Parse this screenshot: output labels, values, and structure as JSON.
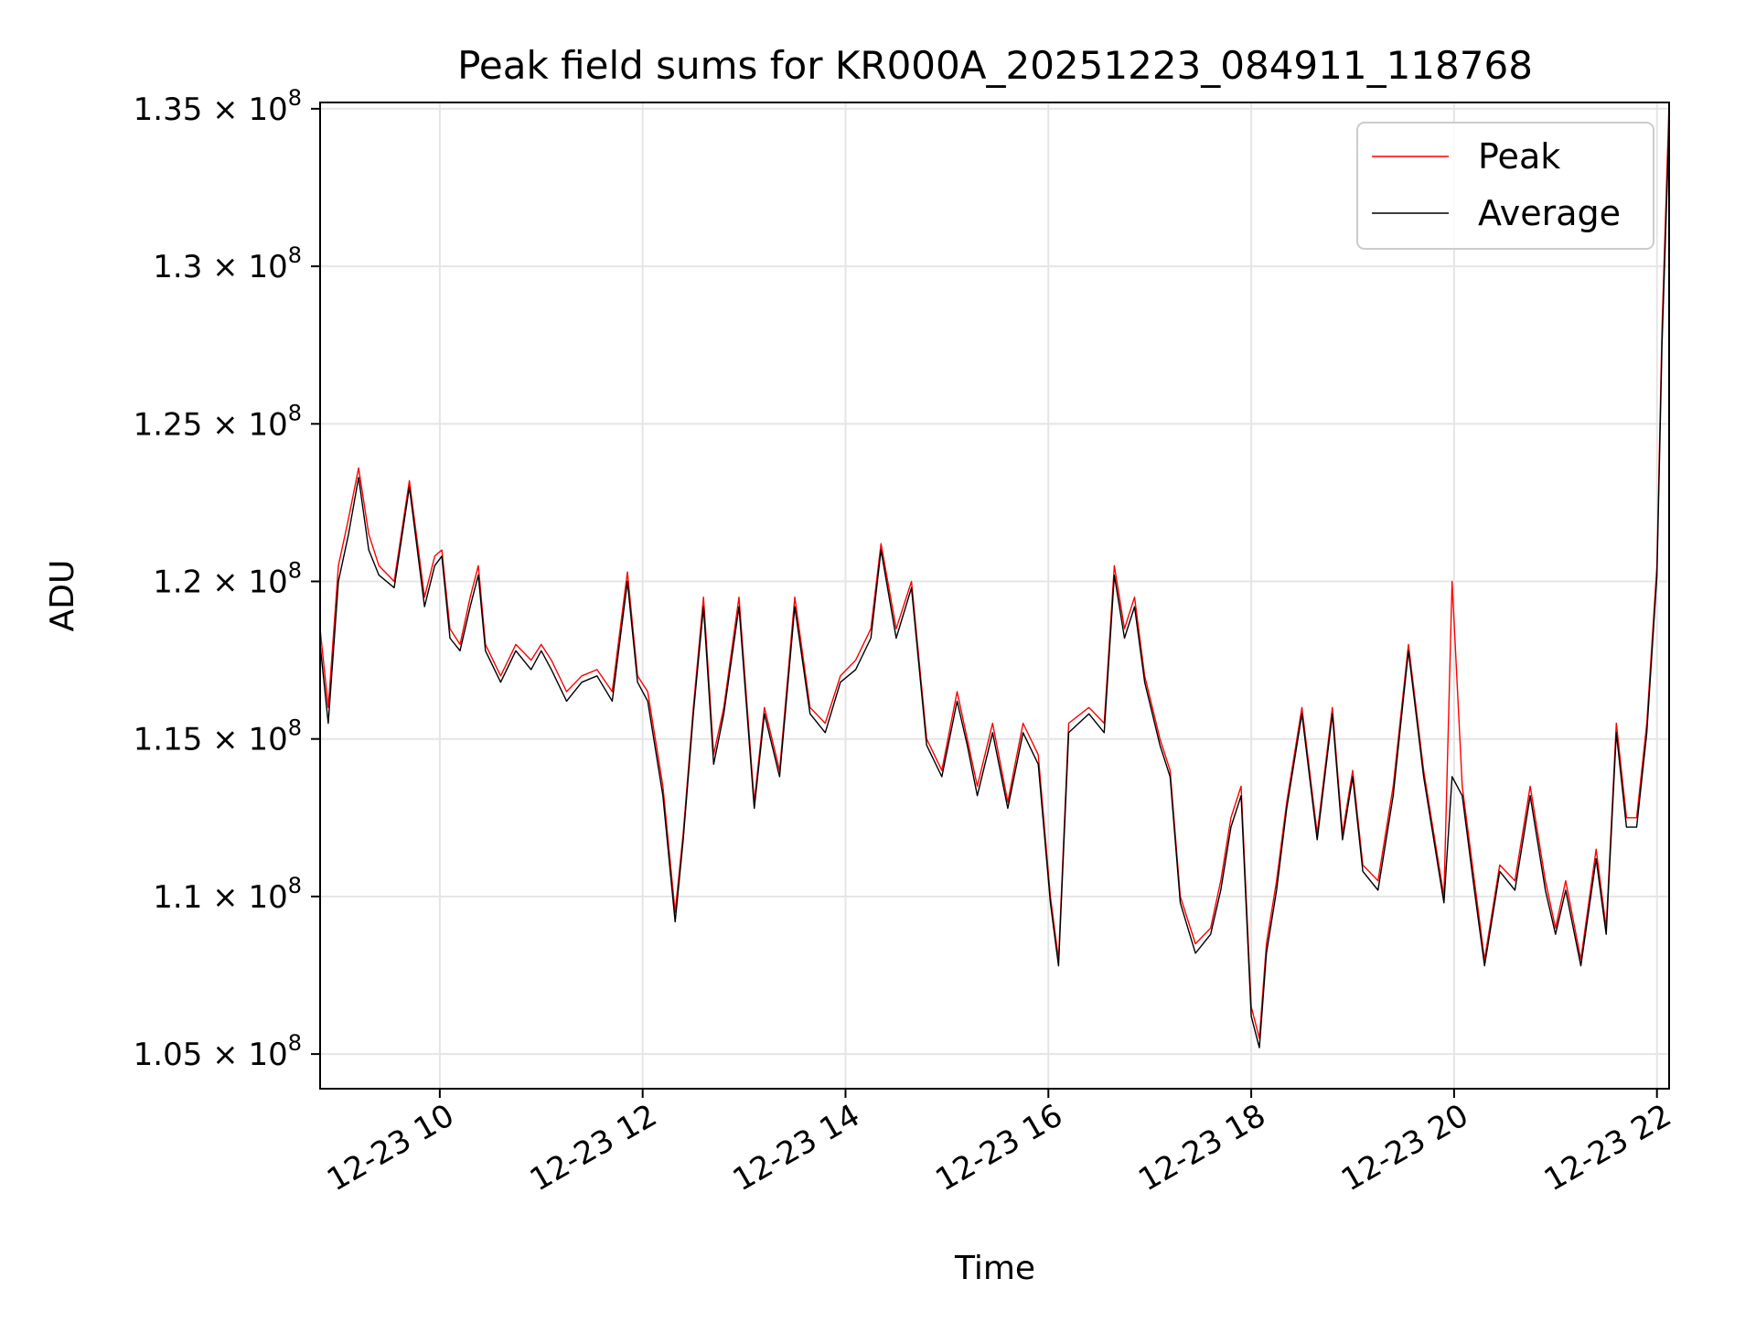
{
  "chart_data": {
    "type": "line",
    "title": "Peak field sums for KR000A_20251223_084911_118768",
    "xlabel": "Time",
    "ylabel": "ADU",
    "grid": true,
    "legend_position": "top-right",
    "colors": {
      "peak": "#ff0000",
      "average": "#000000",
      "grid": "#e5e5e5",
      "axes": "#000000"
    },
    "x_unit": "hours on 2025-12-23",
    "xlim": [
      8.82,
      22.12
    ],
    "ylim": [
      103.9,
      135.2
    ],
    "y_scale_note": "y values in units of 1e6 ADU",
    "x_ticks": [
      {
        "value": 10,
        "label": "12-23 10"
      },
      {
        "value": 12,
        "label": "12-23 12"
      },
      {
        "value": 14,
        "label": "12-23 14"
      },
      {
        "value": 16,
        "label": "12-23 16"
      },
      {
        "value": 18,
        "label": "12-23 18"
      },
      {
        "value": 20,
        "label": "12-23 20"
      },
      {
        "value": 22,
        "label": "12-23 22"
      }
    ],
    "y_ticks": [
      {
        "value": 105,
        "mantissa": "1.05",
        "label": "1.05 × 10^8"
      },
      {
        "value": 110,
        "mantissa": "1.1",
        "label": "1.1 × 10^8"
      },
      {
        "value": 115,
        "mantissa": "1.15",
        "label": "1.15 × 10^8"
      },
      {
        "value": 120,
        "mantissa": "1.2",
        "label": "1.2 × 10^8"
      },
      {
        "value": 125,
        "mantissa": "1.25",
        "label": "1.25 × 10^8"
      },
      {
        "value": 130,
        "mantissa": "1.3",
        "label": "1.3 × 10^8"
      },
      {
        "value": 135,
        "mantissa": "1.35",
        "label": "1.35 × 10^8"
      }
    ],
    "tick_multiplier": "× 10",
    "tick_exponent": "8",
    "series": [
      {
        "name": "Peak",
        "key": "peak",
        "x": [
          8.82,
          8.9,
          9.0,
          9.1,
          9.2,
          9.3,
          9.4,
          9.55,
          9.7,
          9.85,
          9.95,
          10.02,
          10.1,
          10.2,
          10.3,
          10.38,
          10.45,
          10.6,
          10.75,
          10.9,
          11.0,
          11.1,
          11.25,
          11.4,
          11.55,
          11.7,
          11.85,
          11.95,
          12.05,
          12.2,
          12.32,
          12.4,
          12.5,
          12.6,
          12.7,
          12.8,
          12.95,
          13.1,
          13.2,
          13.35,
          13.5,
          13.65,
          13.8,
          13.95,
          14.1,
          14.25,
          14.35,
          14.5,
          14.65,
          14.8,
          14.95,
          15.1,
          15.2,
          15.3,
          15.45,
          15.6,
          15.75,
          15.9,
          16.02,
          16.1,
          16.2,
          16.4,
          16.55,
          16.65,
          16.75,
          16.85,
          16.95,
          17.1,
          17.2,
          17.3,
          17.45,
          17.6,
          17.7,
          17.8,
          17.9,
          18.0,
          18.08,
          18.15,
          18.25,
          18.35,
          18.5,
          18.65,
          18.8,
          18.9,
          19.0,
          19.1,
          19.25,
          19.4,
          19.55,
          19.7,
          19.8,
          19.9,
          19.98,
          20.08,
          20.2,
          20.3,
          20.45,
          20.6,
          20.75,
          20.9,
          21.0,
          21.1,
          21.25,
          21.4,
          21.5,
          21.6,
          21.7,
          21.8,
          21.9,
          22.0,
          22.05,
          22.12
        ],
        "y": [
          118.5,
          116.0,
          120.5,
          122.0,
          123.6,
          121.5,
          120.5,
          120.0,
          123.2,
          119.5,
          120.8,
          121.0,
          118.5,
          118.0,
          119.5,
          120.5,
          118.0,
          117.0,
          118.0,
          117.5,
          118.0,
          117.5,
          116.5,
          117.0,
          117.2,
          116.5,
          120.3,
          117.0,
          116.5,
          113.5,
          109.5,
          112.0,
          116.0,
          119.5,
          114.5,
          116.0,
          119.5,
          113.0,
          116.0,
          114.0,
          119.5,
          116.0,
          115.5,
          117.0,
          117.5,
          118.5,
          121.2,
          118.5,
          120.0,
          115.0,
          114.0,
          116.5,
          115.0,
          113.5,
          115.5,
          113.0,
          115.5,
          114.5,
          110.0,
          108.0,
          115.5,
          116.0,
          115.5,
          120.5,
          118.5,
          119.5,
          117.0,
          115.0,
          114.0,
          110.0,
          108.5,
          109.0,
          110.5,
          112.5,
          113.5,
          106.5,
          105.5,
          108.5,
          110.5,
          113.0,
          116.0,
          112.0,
          116.0,
          112.0,
          114.0,
          111.0,
          110.5,
          113.5,
          118.0,
          114.0,
          112.0,
          110.0,
          120.0,
          113.5,
          110.5,
          108.0,
          111.0,
          110.5,
          113.5,
          110.5,
          109.0,
          110.5,
          108.0,
          111.5,
          109.0,
          115.5,
          112.5,
          112.5,
          115.5,
          120.5,
          128.0,
          135.2
        ]
      },
      {
        "name": "Average",
        "key": "average",
        "x": [
          8.82,
          8.9,
          9.0,
          9.1,
          9.2,
          9.3,
          9.4,
          9.55,
          9.7,
          9.85,
          9.95,
          10.02,
          10.1,
          10.2,
          10.3,
          10.38,
          10.45,
          10.6,
          10.75,
          10.9,
          11.0,
          11.1,
          11.25,
          11.4,
          11.55,
          11.7,
          11.85,
          11.95,
          12.05,
          12.2,
          12.32,
          12.4,
          12.5,
          12.6,
          12.7,
          12.8,
          12.95,
          13.1,
          13.2,
          13.35,
          13.5,
          13.65,
          13.8,
          13.95,
          14.1,
          14.25,
          14.35,
          14.5,
          14.65,
          14.8,
          14.95,
          15.1,
          15.2,
          15.3,
          15.45,
          15.6,
          15.75,
          15.9,
          16.02,
          16.1,
          16.2,
          16.4,
          16.55,
          16.65,
          16.75,
          16.85,
          16.95,
          17.1,
          17.2,
          17.3,
          17.45,
          17.6,
          17.7,
          17.8,
          17.9,
          18.0,
          18.08,
          18.15,
          18.25,
          18.35,
          18.5,
          18.65,
          18.8,
          18.9,
          19.0,
          19.1,
          19.25,
          19.4,
          19.55,
          19.7,
          19.8,
          19.9,
          19.98,
          20.08,
          20.2,
          20.3,
          20.45,
          20.6,
          20.75,
          20.9,
          21.0,
          21.1,
          21.25,
          21.4,
          21.5,
          21.6,
          21.7,
          21.8,
          21.9,
          22.0,
          22.05,
          22.12
        ],
        "y": [
          118.0,
          115.5,
          120.0,
          121.5,
          123.3,
          121.0,
          120.2,
          119.8,
          123.0,
          119.2,
          120.5,
          120.8,
          118.2,
          117.8,
          119.2,
          120.2,
          117.8,
          116.8,
          117.8,
          117.2,
          117.8,
          117.2,
          116.2,
          116.8,
          117.0,
          116.2,
          120.0,
          116.8,
          116.2,
          113.2,
          109.2,
          111.8,
          115.8,
          119.2,
          114.2,
          115.8,
          119.2,
          112.8,
          115.8,
          113.8,
          119.2,
          115.8,
          115.2,
          116.8,
          117.2,
          118.2,
          121.0,
          118.2,
          119.8,
          114.8,
          113.8,
          116.2,
          114.8,
          113.2,
          115.2,
          112.8,
          115.2,
          114.2,
          109.8,
          107.8,
          115.2,
          115.8,
          115.2,
          120.2,
          118.2,
          119.2,
          116.8,
          114.8,
          113.8,
          109.8,
          108.2,
          108.8,
          110.2,
          112.2,
          113.2,
          106.2,
          105.2,
          108.2,
          110.2,
          112.8,
          115.8,
          111.8,
          115.8,
          111.8,
          113.8,
          110.8,
          110.2,
          113.2,
          117.8,
          113.8,
          111.8,
          109.8,
          113.8,
          113.2,
          110.2,
          107.8,
          110.8,
          110.2,
          113.2,
          110.2,
          108.8,
          110.2,
          107.8,
          111.2,
          108.8,
          115.2,
          112.2,
          112.2,
          115.2,
          120.2,
          127.5,
          134.5
        ]
      }
    ]
  }
}
